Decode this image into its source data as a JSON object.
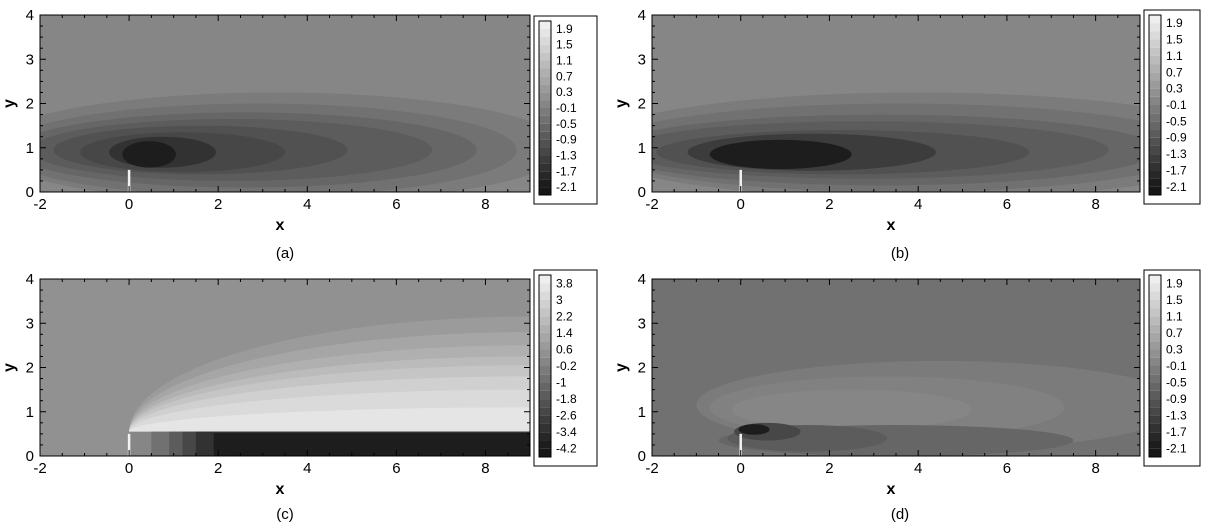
{
  "chart_data": [
    {
      "type": "heatmap",
      "caption": "(a)",
      "xlabel": "x",
      "ylabel": "y",
      "xlim": [
        -2,
        9
      ],
      "ylim": [
        0,
        4
      ],
      "xticks": [
        -2,
        0,
        2,
        4,
        6,
        8
      ],
      "yticks": [
        0,
        1,
        2,
        3,
        4
      ],
      "plate": {
        "x": 0,
        "y_top": 0.5
      },
      "background_value": -0.1,
      "colorbar": {
        "levels": [
          1.9,
          1.5,
          1.1,
          0.7,
          0.3,
          -0.1,
          -0.5,
          -0.9,
          -1.3,
          -1.7,
          -2.1
        ],
        "vmin": -2.3,
        "vmax": 2.1
      },
      "regions": [
        {
          "value": -0.3,
          "cx": 3.3,
          "cy": 1.0,
          "rx": 6.5,
          "ry": 1.25
        },
        {
          "value": -0.5,
          "cx": 2.9,
          "cy": 0.95,
          "rx": 5.8,
          "ry": 1.05
        },
        {
          "value": -0.7,
          "cx": 2.6,
          "cy": 0.95,
          "rx": 5.2,
          "ry": 0.85
        },
        {
          "value": -0.9,
          "cx": 2.3,
          "cy": 0.95,
          "rx": 4.5,
          "ry": 0.7
        },
        {
          "value": -1.1,
          "cx": 1.6,
          "cy": 0.95,
          "rx": 3.3,
          "ry": 0.55
        },
        {
          "value": -1.3,
          "cx": 1.2,
          "cy": 0.9,
          "rx": 2.3,
          "ry": 0.45
        },
        {
          "value": -1.7,
          "cx": 0.75,
          "cy": 0.9,
          "rx": 1.2,
          "ry": 0.35
        },
        {
          "value": -2.1,
          "cx": 0.45,
          "cy": 0.85,
          "rx": 0.6,
          "ry": 0.3
        }
      ]
    },
    {
      "type": "heatmap",
      "caption": "(b)",
      "xlabel": "x",
      "ylabel": "y",
      "xlim": [
        -2,
        9
      ],
      "ylim": [
        0,
        4
      ],
      "xticks": [
        -2,
        0,
        2,
        4,
        6,
        8
      ],
      "yticks": [
        0,
        1,
        2,
        3,
        4
      ],
      "plate": {
        "x": 0,
        "y_top": 0.5
      },
      "background_value": -0.1,
      "colorbar": {
        "levels": [
          1.9,
          1.5,
          1.1,
          0.7,
          0.3,
          -0.1,
          -0.5,
          -0.9,
          -1.3,
          -1.7,
          -2.1
        ],
        "vmin": -2.3,
        "vmax": 2.1
      },
      "regions": [
        {
          "value": -0.3,
          "cx": 4.0,
          "cy": 1.05,
          "rx": 7.5,
          "ry": 1.2
        },
        {
          "value": -0.5,
          "cx": 3.6,
          "cy": 1.0,
          "rx": 6.8,
          "ry": 1.0
        },
        {
          "value": -0.7,
          "cx": 3.2,
          "cy": 0.95,
          "rx": 6.2,
          "ry": 0.8
        },
        {
          "value": -0.9,
          "cx": 2.8,
          "cy": 0.95,
          "rx": 5.5,
          "ry": 0.65
        },
        {
          "value": -1.1,
          "cx": 2.3,
          "cy": 0.9,
          "rx": 4.2,
          "ry": 0.5
        },
        {
          "value": -1.5,
          "cx": 1.6,
          "cy": 0.9,
          "rx": 2.8,
          "ry": 0.42
        },
        {
          "value": -2.1,
          "cx": 0.9,
          "cy": 0.85,
          "rx": 1.6,
          "ry": 0.33
        }
      ]
    },
    {
      "type": "heatmap",
      "caption": "(c)",
      "xlabel": "x",
      "ylabel": "y",
      "xlim": [
        -2,
        9
      ],
      "ylim": [
        0,
        4
      ],
      "xticks": [
        -2,
        0,
        2,
        4,
        6,
        8
      ],
      "yticks": [
        0,
        1,
        2,
        3,
        4
      ],
      "plate": {
        "x": 0,
        "y_top": 0.5
      },
      "background_value": 0.2,
      "colorbar": {
        "levels": [
          3.8,
          3,
          2.2,
          1.4,
          0.6,
          -0.2,
          -1,
          -1.8,
          -2.6,
          -3.4,
          -4.2
        ],
        "vmin": -4.6,
        "vmax": 4.2
      },
      "regions": [
        {
          "value": 0.6,
          "cx": 9.0,
          "cy": 0.55,
          "rx": 9.0,
          "ry": 2.6
        },
        {
          "value": 1.0,
          "cx": 9.0,
          "cy": 0.55,
          "rx": 9.0,
          "ry": 2.25
        },
        {
          "value": 1.4,
          "cx": 9.0,
          "cy": 0.55,
          "rx": 9.0,
          "ry": 1.95
        },
        {
          "value": 1.8,
          "cx": 9.0,
          "cy": 0.55,
          "rx": 9.0,
          "ry": 1.7
        },
        {
          "value": 2.2,
          "cx": 9.0,
          "cy": 0.55,
          "rx": 9.0,
          "ry": 1.5
        },
        {
          "value": 2.6,
          "cx": 9.0,
          "cy": 0.55,
          "rx": 9.0,
          "ry": 1.25
        },
        {
          "value": 3.0,
          "cx": 9.0,
          "cy": 0.55,
          "rx": 9.0,
          "ry": 0.95
        },
        {
          "value": 3.4,
          "cx": 9.0,
          "cy": 0.55,
          "rx": 9.0,
          "ry": 0.55
        }
      ],
      "bands": [
        {
          "value": -0.2,
          "x0": 0.0,
          "x1": 9.0,
          "y0": 0.0,
          "y1": 0.55
        },
        {
          "value": -1.0,
          "x0": 0.5,
          "x1": 9.0,
          "y0": 0.0,
          "y1": 0.55
        },
        {
          "value": -1.8,
          "x0": 0.9,
          "x1": 9.0,
          "y0": 0.0,
          "y1": 0.55
        },
        {
          "value": -2.6,
          "x0": 1.2,
          "x1": 9.0,
          "y0": 0.0,
          "y1": 0.55
        },
        {
          "value": -3.4,
          "x0": 1.5,
          "x1": 9.0,
          "y0": 0.0,
          "y1": 0.55
        },
        {
          "value": -4.2,
          "x0": 1.9,
          "x1": 9.0,
          "y0": 0.0,
          "y1": 0.52
        }
      ]
    },
    {
      "type": "heatmap",
      "caption": "(d)",
      "xlabel": "x",
      "ylabel": "y",
      "xlim": [
        -2,
        9
      ],
      "ylim": [
        0,
        4
      ],
      "xticks": [
        -2,
        0,
        2,
        4,
        6,
        8
      ],
      "yticks": [
        0,
        1,
        2,
        3,
        4
      ],
      "plate": {
        "x": 0,
        "y_top": 0.5
      },
      "background_value": -0.5,
      "colorbar": {
        "levels": [
          1.9,
          1.5,
          1.1,
          0.7,
          0.3,
          -0.1,
          -0.5,
          -0.9,
          -1.3,
          -1.7,
          -2.1
        ],
        "vmin": -2.3,
        "vmax": 2.1
      },
      "regions": [
        {
          "value": -0.3,
          "cx": 4.5,
          "cy": 1.15,
          "rx": 5.5,
          "ry": 1.0
        },
        {
          "value": -0.2,
          "cx": 3.3,
          "cy": 1.1,
          "rx": 4.0,
          "ry": 0.7
        },
        {
          "value": -0.1,
          "cx": 2.5,
          "cy": 1.05,
          "rx": 2.7,
          "ry": 0.45
        },
        {
          "value": -0.7,
          "cx": 3.5,
          "cy": 0.35,
          "rx": 4.0,
          "ry": 0.35
        },
        {
          "value": -0.9,
          "cx": 1.5,
          "cy": 0.4,
          "rx": 1.8,
          "ry": 0.3
        },
        {
          "value": -1.3,
          "cx": 0.6,
          "cy": 0.55,
          "rx": 0.75,
          "ry": 0.2
        },
        {
          "value": -2.1,
          "cx": 0.3,
          "cy": 0.6,
          "rx": 0.35,
          "ry": 0.12
        }
      ]
    }
  ]
}
